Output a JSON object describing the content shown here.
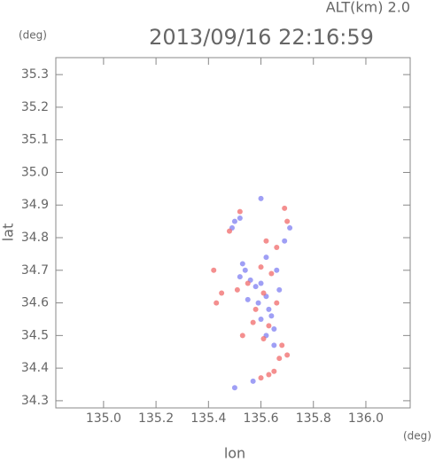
{
  "header": "ALT(km) 2.0",
  "chart_data": {
    "type": "scatter",
    "title": "2013/09/16 22:16:59",
    "x_label": "lon",
    "y_label": "lat",
    "x_unit": "(deg)",
    "y_unit": "(deg)",
    "xlim": [
      134.818,
      136.169
    ],
    "ylim": [
      34.278,
      35.352
    ],
    "xticks": [
      {
        "value": 135,
        "label": "135.0"
      },
      135.2,
      135.4,
      135.6,
      135.8,
      {
        "value": 136,
        "label": "136.0"
      }
    ],
    "yticks": [
      34.3,
      34.4,
      34.5,
      34.6,
      34.7,
      34.8,
      34.9,
      {
        "value": 35,
        "label": "35.0"
      },
      35.1,
      35.2,
      35.3
    ],
    "series": [
      {
        "color": "#7f7ff2",
        "x": [
          135.5,
          135.52,
          135.49,
          135.53,
          135.54,
          135.52,
          135.56,
          135.58,
          135.6,
          135.62,
          135.59,
          135.63,
          135.6,
          135.64,
          135.62,
          135.65,
          135.67,
          135.66,
          135.62,
          135.69,
          135.71,
          135.6,
          135.55,
          135.5,
          135.57,
          135.65
        ],
        "y": [
          34.85,
          34.86,
          34.83,
          34.72,
          34.7,
          34.68,
          34.67,
          34.65,
          34.66,
          34.62,
          34.6,
          34.58,
          34.55,
          34.56,
          34.5,
          34.52,
          34.64,
          34.7,
          34.74,
          34.79,
          34.83,
          34.92,
          34.61,
          34.34,
          34.36,
          34.47
        ]
      },
      {
        "color": "#f06a6a",
        "x": [
          135.52,
          135.48,
          135.51,
          135.55,
          135.6,
          135.64,
          135.58,
          135.61,
          135.66,
          135.63,
          135.61,
          135.68,
          135.67,
          135.7,
          135.65,
          135.63,
          135.6,
          135.69,
          135.7,
          135.62,
          135.66,
          135.42,
          135.45,
          135.43,
          135.57,
          135.53
        ],
        "y": [
          34.88,
          34.82,
          34.64,
          34.66,
          34.71,
          34.69,
          34.58,
          34.63,
          34.6,
          34.53,
          34.49,
          34.47,
          34.43,
          34.44,
          34.39,
          34.38,
          34.37,
          34.89,
          34.85,
          34.79,
          34.77,
          34.7,
          34.63,
          34.6,
          34.54,
          34.5
        ]
      }
    ]
  }
}
